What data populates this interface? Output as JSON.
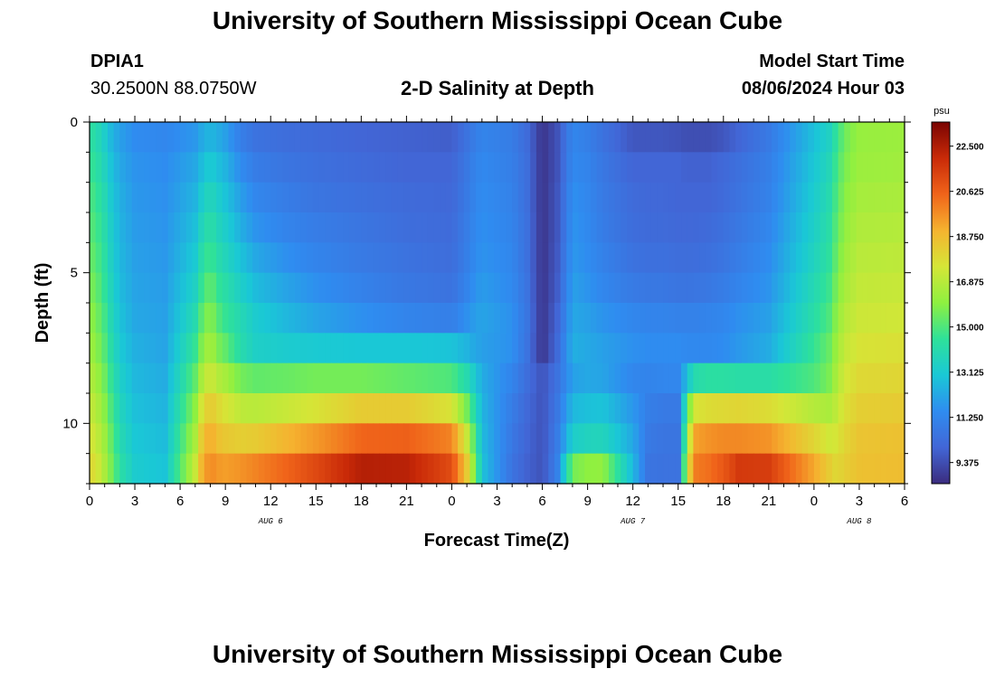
{
  "header": {
    "title": "University of Southern Mississippi Ocean Cube",
    "station": "DPIA1",
    "coords": "30.2500N  88.0750W",
    "subtitle": "2-D Salinity at Depth",
    "model_start_label": "Model Start Time",
    "model_start_value": "08/06/2024 Hour 03"
  },
  "footer": {
    "title": "University of Southern Mississippi Ocean Cube"
  },
  "colors": {
    "scale": [
      "#3b2c7e",
      "#4266d6",
      "#2f8cf0",
      "#1ac8d6",
      "#2ee19a",
      "#8ef040",
      "#d5e637",
      "#f5b32f",
      "#f0641a",
      "#c92a08",
      "#7a0402"
    ]
  },
  "chart_data": {
    "type": "heatmap",
    "title": "2-D Salinity at Depth",
    "xlabel": "Forecast Time(Z)",
    "ylabel": "Depth (ft)",
    "x_start_hour": 0,
    "x_end_hour": 54,
    "y_range_ft": [
      0,
      12
    ],
    "x_tick_hours": [
      0,
      3,
      6,
      9,
      12,
      15,
      18,
      21,
      24,
      27,
      30,
      33,
      36,
      39,
      42,
      45,
      48,
      51,
      54
    ],
    "x_tick_labels": [
      "0",
      "3",
      "6",
      "9",
      "12",
      "15",
      "18",
      "21",
      "0",
      "3",
      "6",
      "9",
      "12",
      "15",
      "18",
      "21",
      "0",
      "3",
      "6"
    ],
    "y_ticks": [
      0,
      5,
      10
    ],
    "y_tick_labels": [
      "0",
      "5",
      "10"
    ],
    "date_labels": [
      {
        "text": "AUG 6",
        "hour": 12
      },
      {
        "text": "AUG 7",
        "hour": 36
      },
      {
        "text": "AUG 8",
        "hour": 51
      }
    ],
    "colorbar": {
      "unit": "psu",
      "min": 8.5,
      "max": 23.5,
      "tick_values": [
        22.5,
        20.625,
        18.75,
        16.875,
        15.0,
        13.125,
        11.25,
        9.375
      ],
      "tick_labels": [
        "22.500",
        "20.625",
        "18.750",
        "16.875",
        "15.000",
        "13.125",
        "11.250",
        "9.375"
      ]
    },
    "time_hours": [
      0,
      0.5,
      1,
      1.5,
      2,
      3,
      5,
      7,
      7.5,
      8,
      8.5,
      9,
      10,
      11,
      13,
      15,
      18,
      21,
      24,
      25,
      25.5,
      26,
      28,
      29,
      30,
      31,
      32,
      33,
      34,
      36,
      37,
      38,
      39,
      39.5,
      40,
      41,
      42,
      43,
      45,
      48,
      49,
      49.5,
      50,
      51,
      54
    ],
    "depth_rows_ft": [
      0.5,
      1.5,
      2.5,
      3.5,
      4.5,
      5.5,
      6.5,
      7.5,
      8.5,
      9.5,
      10.5,
      11.5
    ],
    "salinity_psu": [
      [
        14.4,
        14.0,
        13.3,
        12.5,
        12.0,
        11.5,
        11.3,
        11.8,
        12.3,
        12.6,
        12.3,
        12.0,
        11.0,
        10.5,
        10.3,
        10.2,
        10.0,
        9.9,
        9.8,
        10.5,
        10.9,
        11.2,
        10.9,
        10.2,
        8.7,
        9.5,
        11.3,
        11.0,
        10.5,
        9.6,
        9.6,
        9.6,
        9.5,
        9.4,
        9.4,
        9.4,
        9.6,
        10.0,
        10.8,
        12.8,
        13.5,
        14.5,
        15.5,
        16.2,
        16.3
      ],
      [
        14.7,
        14.3,
        13.6,
        12.8,
        12.2,
        11.7,
        11.5,
        12.2,
        12.8,
        13.2,
        12.8,
        12.5,
        11.5,
        10.9,
        10.6,
        10.4,
        10.2,
        10.0,
        10.0,
        10.7,
        11.1,
        11.4,
        11.0,
        10.3,
        8.7,
        9.5,
        11.4,
        11.2,
        10.7,
        10.0,
        10.0,
        10.0,
        10.0,
        9.9,
        9.9,
        9.9,
        10.1,
        10.4,
        11.0,
        13.0,
        13.8,
        14.8,
        15.7,
        16.3,
        16.4
      ],
      [
        15.0,
        14.6,
        13.9,
        13.0,
        12.4,
        11.8,
        11.6,
        12.5,
        13.3,
        13.8,
        13.3,
        12.9,
        12.0,
        11.3,
        10.9,
        10.6,
        10.4,
        10.2,
        10.1,
        10.8,
        11.2,
        11.5,
        11.1,
        10.3,
        8.7,
        9.6,
        11.6,
        11.3,
        10.8,
        10.2,
        10.1,
        10.1,
        10.0,
        10.0,
        10.0,
        10.0,
        10.2,
        10.5,
        11.1,
        13.2,
        14.0,
        15.0,
        15.9,
        16.5,
        16.6
      ],
      [
        15.2,
        14.8,
        14.1,
        13.2,
        12.5,
        11.9,
        11.7,
        12.8,
        13.8,
        14.3,
        13.7,
        13.3,
        12.4,
        11.7,
        11.2,
        10.9,
        10.6,
        10.3,
        10.2,
        10.9,
        11.3,
        11.6,
        11.2,
        10.4,
        8.7,
        9.6,
        11.7,
        11.4,
        10.9,
        10.3,
        10.2,
        10.2,
        10.1,
        10.1,
        10.1,
        10.2,
        10.4,
        10.7,
        11.3,
        13.4,
        14.2,
        15.2,
        16.1,
        16.7,
        16.8
      ],
      [
        15.5,
        15.0,
        14.3,
        13.3,
        12.6,
        12.0,
        11.8,
        13.1,
        14.3,
        14.8,
        14.1,
        13.7,
        12.9,
        12.2,
        11.6,
        11.2,
        10.8,
        10.5,
        10.3,
        11.0,
        11.4,
        11.7,
        11.3,
        10.4,
        8.7,
        9.7,
        11.8,
        11.5,
        11.1,
        10.5,
        10.4,
        10.4,
        10.3,
        10.3,
        10.3,
        10.4,
        10.6,
        10.9,
        11.5,
        13.6,
        14.4,
        15.4,
        16.3,
        16.9,
        17.0
      ],
      [
        15.8,
        15.3,
        14.5,
        13.5,
        12.7,
        12.1,
        11.9,
        13.5,
        14.8,
        15.4,
        14.6,
        14.2,
        13.4,
        12.7,
        12.1,
        11.6,
        11.1,
        10.7,
        10.5,
        11.2,
        11.6,
        11.9,
        11.4,
        10.5,
        8.7,
        9.8,
        12.0,
        11.7,
        11.3,
        10.8,
        10.7,
        10.7,
        10.6,
        10.6,
        10.6,
        10.7,
        10.9,
        11.2,
        11.7,
        13.9,
        14.7,
        15.7,
        16.5,
        17.1,
        17.2
      ],
      [
        16.1,
        15.6,
        14.8,
        13.7,
        12.9,
        12.2,
        12.0,
        14.0,
        15.4,
        16.0,
        15.1,
        14.6,
        13.9,
        13.2,
        12.6,
        12.1,
        11.6,
        11.2,
        11.0,
        11.6,
        11.9,
        12.1,
        11.6,
        10.6,
        8.7,
        10.0,
        12.2,
        12.0,
        11.7,
        11.3,
        11.2,
        11.2,
        11.1,
        11.1,
        11.1,
        11.2,
        11.3,
        11.6,
        12.0,
        14.2,
        15.0,
        16.0,
        16.8,
        17.3,
        17.4
      ],
      [
        16.4,
        15.9,
        15.1,
        14.0,
        13.1,
        12.4,
        12.1,
        14.6,
        16.0,
        16.6,
        15.7,
        15.3,
        14.1,
        13.4,
        13.2,
        13.1,
        13.0,
        13.0,
        12.9,
        12.5,
        12.2,
        12.0,
        11.6,
        10.5,
        8.7,
        10.2,
        12.4,
        12.2,
        12.0,
        11.6,
        11.5,
        11.5,
        11.5,
        11.4,
        11.4,
        11.4,
        11.5,
        11.8,
        12.3,
        14.6,
        15.4,
        16.3,
        17.1,
        17.6,
        17.7
      ],
      [
        16.8,
        16.3,
        15.5,
        14.4,
        13.4,
        12.6,
        12.3,
        15.3,
        16.8,
        17.4,
        16.8,
        16.5,
        15.6,
        15.3,
        15.4,
        15.6,
        15.6,
        15.3,
        15.0,
        14.0,
        13.2,
        12.3,
        11.2,
        10.3,
        9.5,
        10.5,
        12.0,
        12.2,
        12.1,
        11.3,
        11.2,
        11.3,
        11.3,
        12.5,
        14.0,
        14.3,
        14.3,
        14.2,
        14.2,
        15.0,
        15.7,
        16.6,
        17.4,
        17.9,
        18.0
      ],
      [
        17.2,
        16.7,
        15.9,
        14.8,
        13.7,
        12.8,
        12.5,
        16.0,
        17.8,
        18.4,
        17.9,
        17.6,
        17.0,
        16.9,
        17.2,
        17.6,
        18.3,
        18.3,
        17.6,
        15.6,
        14.1,
        12.5,
        10.9,
        10.1,
        9.5,
        10.7,
        12.6,
        12.8,
        12.9,
        11.8,
        11.0,
        10.8,
        10.8,
        14.0,
        17.5,
        17.8,
        17.9,
        18.0,
        17.8,
        16.8,
        16.6,
        17.0,
        17.7,
        18.2,
        18.3
      ],
      [
        17.6,
        17.1,
        16.3,
        15.2,
        14.0,
        13.0,
        12.7,
        16.6,
        18.6,
        19.2,
        18.6,
        18.4,
        18.2,
        18.3,
        18.9,
        19.5,
        20.5,
        20.6,
        19.9,
        17.2,
        15.0,
        12.7,
        10.7,
        10.0,
        9.5,
        10.9,
        13.3,
        13.6,
        13.7,
        12.2,
        10.8,
        10.6,
        10.6,
        15.0,
        19.3,
        19.6,
        19.8,
        19.8,
        19.6,
        18.0,
        17.4,
        17.5,
        18.0,
        18.5,
        18.6
      ],
      [
        18.0,
        17.5,
        16.6,
        15.5,
        14.3,
        13.2,
        12.9,
        17.2,
        19.2,
        19.8,
        19.5,
        19.4,
        19.6,
        19.9,
        20.5,
        21.2,
        22.4,
        22.3,
        21.1,
        18.3,
        15.8,
        12.9,
        10.5,
        9.9,
        9.5,
        11.1,
        15.6,
        16.0,
        16.1,
        12.6,
        10.6,
        10.5,
        10.5,
        16.0,
        20.0,
        20.3,
        20.8,
        21.6,
        21.5,
        19.2,
        18.3,
        17.9,
        18.2,
        18.6,
        18.7
      ]
    ]
  }
}
